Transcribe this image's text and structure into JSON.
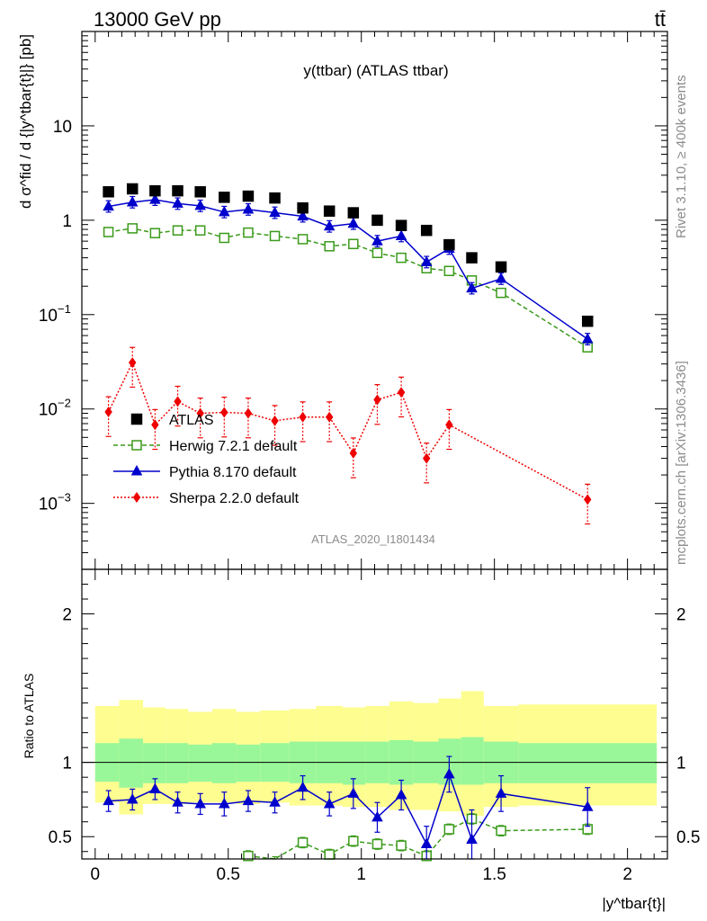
{
  "header": {
    "energy_label": "13000 GeV pp",
    "process_label": "tt̄"
  },
  "side_labels": {
    "rivet": "Rivet 3.1.10, ≥ 400k events",
    "mcplots": "mcplots.cern.ch [arXiv:1306.3436]"
  },
  "watermark": "ATLAS_2020_I1801434",
  "colors": {
    "atlas": "#000000",
    "herwig": "#3a9a1a",
    "pythia": "#0000cc",
    "sherpa": "#ee0000",
    "band_inner": "#99f799",
    "band_outer": "#fdfd90"
  },
  "chart_data": [
    {
      "type": "scatter",
      "title": "y(ttbar) (ATLAS ttbar)",
      "ylabel": "d σ^fid / d {|y^tbar{t}|} [pb]",
      "xlim": [
        -0.05,
        2.15
      ],
      "ylim": [
        0.0002,
        100
      ],
      "yscale": "log",
      "y_ticks": [
        {
          "v": 10,
          "t": "10"
        },
        {
          "v": 1,
          "t": "1"
        },
        {
          "v": 0.1,
          "t": "10"
        },
        {
          "v": 0.01,
          "t": "10"
        },
        {
          "v": 0.001,
          "t": "10"
        }
      ],
      "y_tick_exponents": [
        "",
        "",
        "−1",
        "−2",
        "−3"
      ],
      "x": [
        0.05,
        0.14,
        0.225,
        0.31,
        0.395,
        0.485,
        0.575,
        0.675,
        0.78,
        0.88,
        0.97,
        1.06,
        1.15,
        1.245,
        1.33,
        1.415,
        1.525,
        1.85
      ],
      "legend_position": "middle-left",
      "series": [
        {
          "name": "ATLAS",
          "values": [
            2.0,
            2.15,
            2.05,
            2.05,
            2.0,
            1.75,
            1.8,
            1.72,
            1.35,
            1.25,
            1.2,
            1.0,
            0.88,
            0.78,
            0.55,
            0.4,
            0.32,
            0.085
          ]
        },
        {
          "name": "Herwig 7.2.1 default",
          "values": [
            0.75,
            0.82,
            0.73,
            0.78,
            0.78,
            0.65,
            0.74,
            0.68,
            0.63,
            0.53,
            0.56,
            0.45,
            0.4,
            0.31,
            0.29,
            0.23,
            0.17,
            0.045
          ]
        },
        {
          "name": "Pythia 8.170 default",
          "values": [
            1.4,
            1.55,
            1.65,
            1.5,
            1.42,
            1.22,
            1.3,
            1.2,
            1.1,
            0.86,
            0.92,
            0.6,
            0.68,
            0.36,
            0.5,
            0.19,
            0.24,
            0.055
          ]
        },
        {
          "name": "Sherpa 2.2.0 default",
          "values": [
            0.0093,
            0.031,
            0.0068,
            0.012,
            0.009,
            0.0092,
            0.009,
            0.0075,
            0.0082,
            0.0082,
            0.0034,
            0.0125,
            0.015,
            0.003,
            0.0068,
            null,
            null,
            0.0011
          ]
        }
      ]
    },
    {
      "type": "line",
      "ylabel": "Ratio to ATLAS",
      "xlabel": "|y^tbar{t}|",
      "xlim": [
        -0.05,
        2.15
      ],
      "ylim": [
        0.35,
        2.3
      ],
      "x_ticks": [
        0,
        0.5,
        1,
        1.5,
        2
      ],
      "x_tick_labels": [
        "0",
        "0.5",
        "1",
        "1.5",
        "2"
      ],
      "y_ticks": [
        0.5,
        1,
        2
      ],
      "y_tick_labels": [
        "0.5",
        "1",
        "2"
      ],
      "x": [
        0.05,
        0.14,
        0.225,
        0.31,
        0.395,
        0.485,
        0.575,
        0.675,
        0.78,
        0.88,
        0.97,
        1.06,
        1.15,
        1.245,
        1.33,
        1.415,
        1.525,
        1.85
      ],
      "band_edges": [
        0,
        0.09,
        0.18,
        0.265,
        0.35,
        0.44,
        0.53,
        0.62,
        0.73,
        0.83,
        0.93,
        1.015,
        1.105,
        1.195,
        1.29,
        1.375,
        1.46,
        1.59,
        2.11
      ],
      "band_inner_lo": [
        0.87,
        0.83,
        0.86,
        0.86,
        0.87,
        0.86,
        0.87,
        0.87,
        0.86,
        0.86,
        0.85,
        0.86,
        0.85,
        0.86,
        0.85,
        0.85,
        0.86,
        0.86
      ],
      "band_inner_hi": [
        1.13,
        1.16,
        1.13,
        1.13,
        1.12,
        1.13,
        1.12,
        1.13,
        1.14,
        1.14,
        1.14,
        1.14,
        1.15,
        1.14,
        1.16,
        1.17,
        1.14,
        1.13
      ],
      "band_outer_lo": [
        0.73,
        0.65,
        0.72,
        0.72,
        0.73,
        0.73,
        0.72,
        0.73,
        0.71,
        0.71,
        0.7,
        0.7,
        0.68,
        0.68,
        0.67,
        0.64,
        0.7,
        0.71
      ],
      "band_outer_hi": [
        1.38,
        1.42,
        1.37,
        1.36,
        1.34,
        1.36,
        1.34,
        1.35,
        1.36,
        1.38,
        1.37,
        1.38,
        1.41,
        1.4,
        1.43,
        1.48,
        1.38,
        1.39
      ],
      "reference_line": 1,
      "series": [
        {
          "name": "Herwig 7.2.1 default",
          "values": [
            null,
            null,
            null,
            null,
            null,
            null,
            0.37,
            0.33,
            0.46,
            0.38,
            0.47,
            0.45,
            0.44,
            0.37,
            0.55,
            0.62,
            0.54,
            0.55
          ]
        },
        {
          "name": "Pythia 8.170 default",
          "values": [
            0.74,
            0.75,
            0.82,
            0.73,
            0.72,
            0.72,
            0.74,
            0.73,
            0.83,
            0.72,
            0.79,
            0.63,
            0.78,
            0.45,
            0.92,
            0.48,
            0.79,
            0.7
          ]
        }
      ]
    }
  ]
}
